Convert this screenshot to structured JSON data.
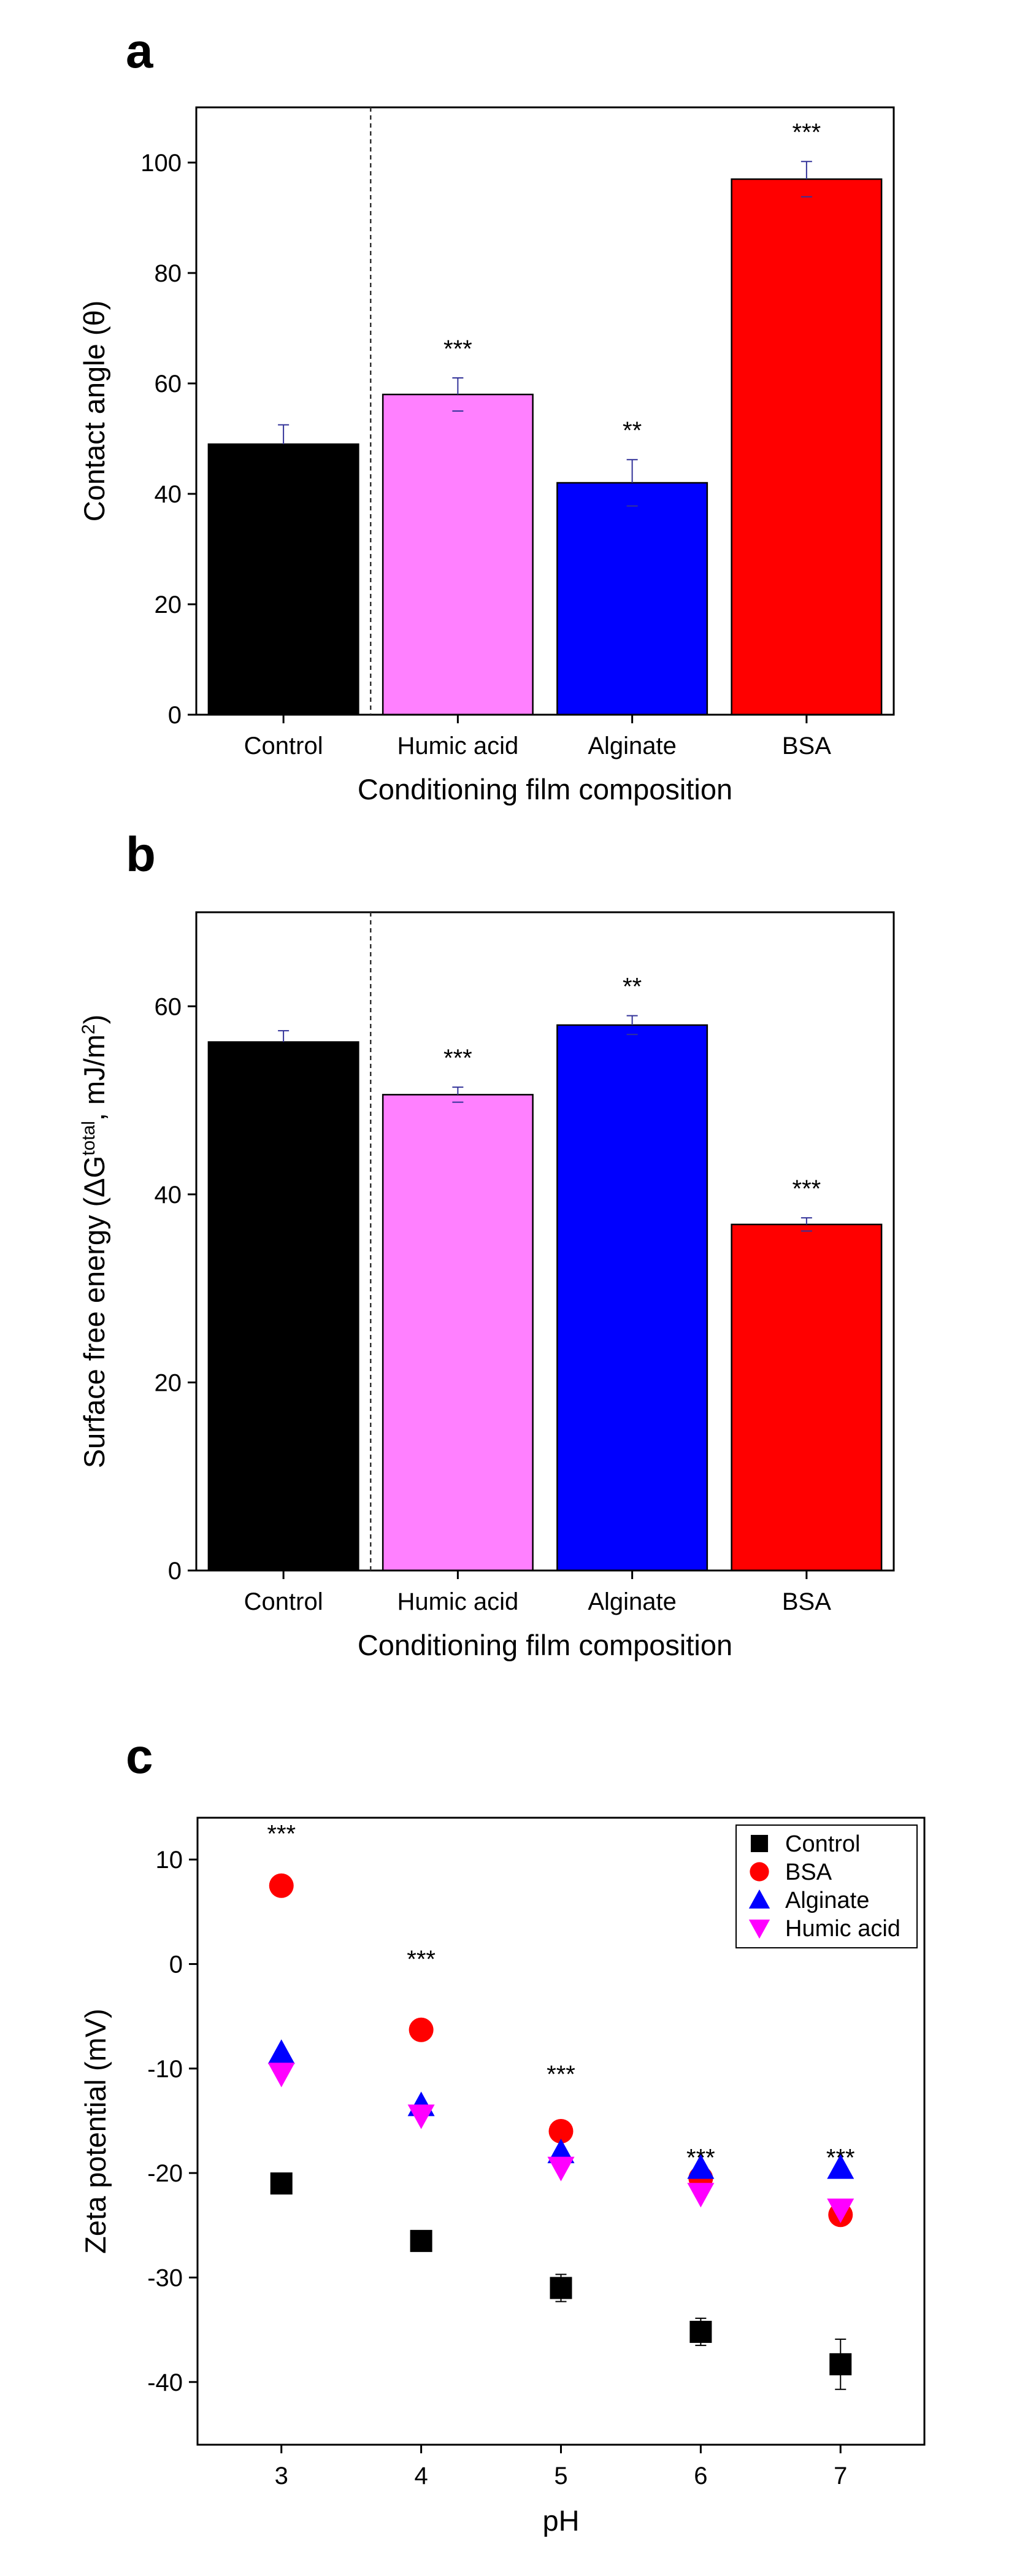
{
  "chart_data": [
    {
      "panel": "a",
      "type": "bar",
      "xlabel": "Conditioning film composition",
      "ylabel": "Contact angle (θ)",
      "ylim": [
        0,
        110
      ],
      "yticks": [
        0,
        20,
        40,
        60,
        80,
        100
      ],
      "categories": [
        "Control",
        "Humic acid",
        "Alginate",
        "BSA"
      ],
      "values": [
        49,
        58,
        42,
        97
      ],
      "errors": [
        3.5,
        3,
        4.2,
        3.2
      ],
      "colors": [
        "#000000",
        "#ff80ff",
        "#0000ff",
        "#ff0000"
      ],
      "significance": [
        "",
        "***",
        "**",
        "***"
      ],
      "divider_after": "Control"
    },
    {
      "panel": "b",
      "type": "bar",
      "xlabel": "Conditioning film composition",
      "ylabel_prefix": "Surface free energy (ΔG",
      "ylabel_sup1": "total",
      "ylabel_mid": ", mJ/m",
      "ylabel_sup2": "2",
      "ylabel_suffix": ")",
      "ylim": [
        0,
        70
      ],
      "yticks": [
        0,
        20,
        40,
        60
      ],
      "categories": [
        "Control",
        "Humic acid",
        "Alginate",
        "BSA"
      ],
      "values": [
        56.2,
        50.6,
        58,
        36.8
      ],
      "errors": [
        1.2,
        0.8,
        1,
        0.7
      ],
      "colors": [
        "#000000",
        "#ff80ff",
        "#0000ff",
        "#ff0000"
      ],
      "significance": [
        "",
        "***",
        "**",
        "***"
      ],
      "divider_after": "Control"
    },
    {
      "panel": "c",
      "type": "scatter",
      "xlabel": "pH",
      "ylabel": "Zeta potential (mV)",
      "xlim": [
        2.4,
        7.6
      ],
      "ylim": [
        -46,
        14
      ],
      "xticks": [
        3,
        4,
        5,
        6,
        7
      ],
      "yticks": [
        -40,
        -30,
        -20,
        -10,
        0,
        10
      ],
      "x": [
        3,
        4,
        5,
        6,
        7
      ],
      "series": [
        {
          "name": "Control",
          "marker": "square",
          "color": "#000000",
          "values": [
            -21,
            -26.5,
            -31,
            -35.2,
            -38.3
          ],
          "errors": [
            0.5,
            0.6,
            1.3,
            1.3,
            2.4
          ]
        },
        {
          "name": "BSA",
          "marker": "circle",
          "color": "#ff0000",
          "values": [
            7.5,
            -6.3,
            -16,
            -20.5,
            -24
          ],
          "errors": [
            0.4,
            0.4,
            0.4,
            0.4,
            0.4
          ]
        },
        {
          "name": "Alginate",
          "marker": "triangle-up",
          "color": "#0000ff",
          "values": [
            -8.5,
            -13.5,
            -18,
            -19.5,
            -19.5
          ],
          "errors": [
            0.3,
            0.3,
            0.3,
            0.3,
            0.3
          ]
        },
        {
          "name": "Humic acid",
          "marker": "triangle-down",
          "color": "#ff00ff",
          "values": [
            -10.5,
            -14.5,
            -19.5,
            -22,
            -23.5
          ],
          "errors": [
            0.3,
            0.3,
            0.3,
            0.3,
            0.3
          ]
        }
      ],
      "significance": [
        "***",
        "***",
        "***",
        "***",
        "***"
      ],
      "significance_y": [
        12.5,
        0.5,
        -10.5,
        -18.5,
        -18.5
      ],
      "legend_position": "top-right"
    }
  ]
}
